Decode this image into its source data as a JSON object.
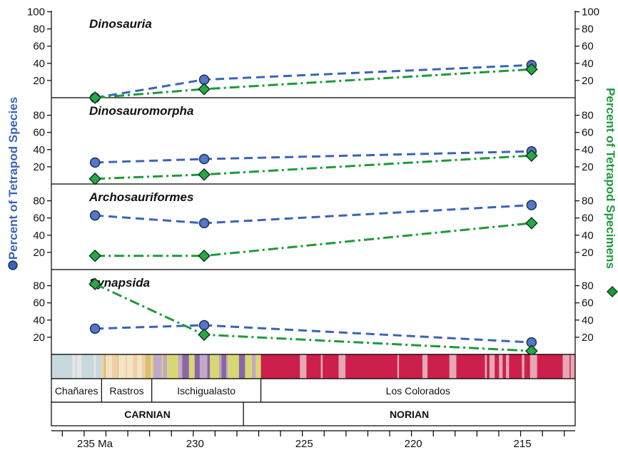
{
  "chart_data": {
    "type": "line",
    "axes": {
      "y_left_label": "Percent of Tetrapod Species",
      "y_right_label": "Percent of Tetrapod Specimens",
      "y_left_color": "#3b64b5",
      "y_right_color": "#1e9a3c",
      "x_ticks": [
        "235 Ma",
        "230",
        "225",
        "220",
        "215"
      ],
      "x_tick_values": [
        235,
        230,
        225,
        220,
        215
      ],
      "x_range_ma": [
        236.5,
        212.5
      ],
      "y_range": [
        0,
        100
      ],
      "grid": false
    },
    "panels": [
      {
        "title": "Dinosauria",
        "yticks": [
          "100",
          "80",
          "60",
          "40",
          "20"
        ],
        "ytick_values": [
          100,
          80,
          60,
          40,
          20
        ],
        "series": [
          {
            "marker": "circle",
            "color": "#3b64b5",
            "x": [
              234.5,
              229.5,
              214.5
            ],
            "y": [
              0,
              21,
              38
            ]
          },
          {
            "marker": "diamond",
            "color": "#1e9a3c",
            "x": [
              234.5,
              229.5,
              214.5
            ],
            "y": [
              0,
              10,
              33
            ]
          }
        ]
      },
      {
        "title": "Dinosauromorpha",
        "yticks": [
          "80",
          "60",
          "40",
          "20"
        ],
        "ytick_values": [
          80,
          60,
          40,
          20
        ],
        "series": [
          {
            "marker": "circle",
            "color": "#3b64b5",
            "x": [
              234.5,
              229.5,
              214.5
            ],
            "y": [
              25,
              29,
              38
            ]
          },
          {
            "marker": "diamond",
            "color": "#1e9a3c",
            "x": [
              234.5,
              229.5,
              214.5
            ],
            "y": [
              6,
              11,
              33
            ]
          }
        ]
      },
      {
        "title": "Archosauriformes",
        "yticks": [
          "80",
          "60",
          "40",
          "20"
        ],
        "ytick_values": [
          80,
          60,
          40,
          20
        ],
        "series": [
          {
            "marker": "circle",
            "color": "#3b64b5",
            "x": [
              234.5,
              229.5,
              214.5
            ],
            "y": [
              63,
              54,
              75
            ]
          },
          {
            "marker": "diamond",
            "color": "#1e9a3c",
            "x": [
              234.5,
              229.5,
              214.5
            ],
            "y": [
              16,
              16,
              54
            ]
          }
        ]
      },
      {
        "title": "Synapsida",
        "yticks": [
          "80",
          "60",
          "40",
          "20"
        ],
        "ytick_values": [
          80,
          60,
          40,
          20
        ],
        "series": [
          {
            "marker": "circle",
            "color": "#3b64b5",
            "x": [
              234.5,
              229.5,
              214.5
            ],
            "y": [
              30,
              34,
              14
            ]
          },
          {
            "marker": "diamond",
            "color": "#1e9a3c",
            "x": [
              234.5,
              229.5,
              214.5
            ],
            "y": [
              82,
              23,
              4
            ]
          }
        ]
      }
    ],
    "formations": [
      {
        "name": "Chañares",
        "from": 236.5,
        "to": 234.2
      },
      {
        "name": "Rastros",
        "from": 234.2,
        "to": 231.9
      },
      {
        "name": "Ischigualasto",
        "from": 231.9,
        "to": 226.9
      },
      {
        "name": "Los Colorados",
        "from": 226.9,
        "to": 212.5
      }
    ],
    "stages": [
      {
        "name": "CARNIAN",
        "from": 236.5,
        "to": 227.7
      },
      {
        "name": "NORIAN",
        "from": 227.7,
        "to": 212.5
      }
    ],
    "magnetostratigraphy_colors": {
      "chanares": [
        "#c7d9dd",
        "#e6e6e6"
      ],
      "rastros": [
        "#efcfa6",
        "#d9c070",
        "#f3e4c4"
      ],
      "ischigualasto": [
        "#d7d873",
        "#8a66a8",
        "#c4a8c7"
      ],
      "los_colorados": [
        "#cc1f4c",
        "#e7a7b4"
      ]
    }
  }
}
